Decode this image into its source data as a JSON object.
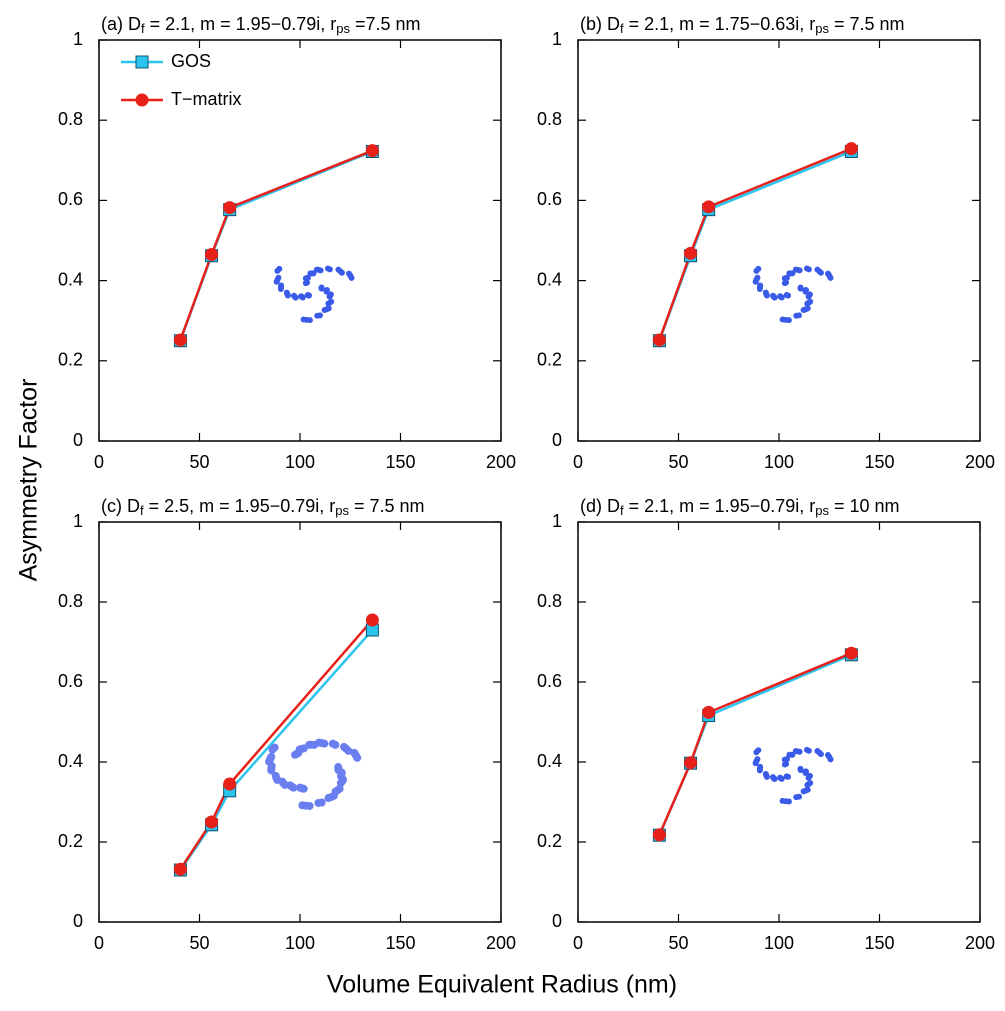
{
  "ylabel": "Asymmetry Factor",
  "xlabel": "Volume Equivalent Radius (nm)",
  "chart_data": [
    {
      "type": "line",
      "title": [
        "(a) D",
        "f",
        " = 2.1, m = 1.95−0.79i, r",
        "ps",
        " =7.5 nm"
      ],
      "x": [
        40.5,
        56,
        65,
        136
      ],
      "xlim": [
        0,
        200
      ],
      "xticks": [
        0,
        50,
        100,
        150,
        200
      ],
      "ylim": [
        0,
        1
      ],
      "yticks": [
        0,
        0.2,
        0.4,
        0.6,
        0.8,
        1
      ],
      "legend": "upper left",
      "series": [
        {
          "name": "GOS",
          "color": "#29c5ef",
          "values": [
            0.25,
            0.462,
            0.577,
            0.722
          ]
        },
        {
          "name": "T−matrix",
          "color": "#e8201a",
          "values": [
            0.252,
            0.465,
            0.582,
            0.724
          ]
        }
      ]
    },
    {
      "type": "line",
      "title": [
        "(b) D",
        "f",
        " = 2.1, m = 1.75−0.63i, r",
        "ps",
        " = 7.5 nm"
      ],
      "x": [
        40.5,
        56,
        65,
        136
      ],
      "xlim": [
        0,
        200
      ],
      "xticks": [
        0,
        50,
        100,
        150,
        200
      ],
      "ylim": [
        0,
        1
      ],
      "yticks": [
        0,
        0.2,
        0.4,
        0.6,
        0.8,
        1
      ],
      "series": [
        {
          "color": "#29c5ef",
          "values": [
            0.25,
            0.462,
            0.577,
            0.722
          ]
        },
        {
          "color": "#e8201a",
          "values": [
            0.252,
            0.468,
            0.584,
            0.729
          ]
        }
      ]
    },
    {
      "type": "line",
      "title": [
        "(c) D",
        "f",
        " = 2.5, m = 1.95−0.79i, r",
        "ps",
        " = 7.5 nm"
      ],
      "x": [
        40.5,
        56,
        65,
        136
      ],
      "xlim": [
        0,
        200
      ],
      "xticks": [
        0,
        50,
        100,
        150,
        200
      ],
      "ylim": [
        0,
        1
      ],
      "yticks": [
        0,
        0.2,
        0.4,
        0.6,
        0.8,
        1
      ],
      "series": [
        {
          "color": "#29c5ef",
          "values": [
            0.13,
            0.243,
            0.328,
            0.73
          ]
        },
        {
          "color": "#e8201a",
          "values": [
            0.132,
            0.25,
            0.345,
            0.755
          ]
        }
      ]
    },
    {
      "type": "line",
      "title": [
        "(d) D",
        "f",
        " = 2.1, m = 1.95−0.79i, r",
        "ps",
        " = 10 nm"
      ],
      "x": [
        40.5,
        56,
        65,
        136
      ],
      "xlim": [
        0,
        200
      ],
      "xticks": [
        0,
        50,
        100,
        150,
        200
      ],
      "ylim": [
        0,
        1
      ],
      "yticks": [
        0,
        0.2,
        0.4,
        0.6,
        0.8,
        1
      ],
      "series": [
        {
          "color": "#29c5ef",
          "values": [
            0.217,
            0.397,
            0.516,
            0.668
          ]
        },
        {
          "color": "#e8201a",
          "values": [
            0.218,
            0.398,
            0.524,
            0.672
          ]
        }
      ]
    }
  ]
}
